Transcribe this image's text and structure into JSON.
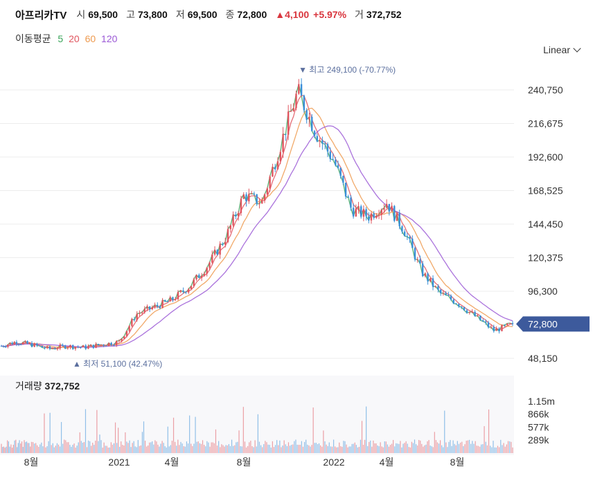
{
  "header": {
    "name": "아프리카TV",
    "open_label": "시",
    "open": "69,500",
    "high_label": "고",
    "high": "73,800",
    "low_label": "저",
    "low": "69,500",
    "close_label": "종",
    "close": "72,800",
    "change": "▲4,100",
    "change_pct": "+5.97%",
    "volume_label": "거",
    "volume": "372,752"
  },
  "ma_legend": {
    "label": "이동평균",
    "periods": [
      {
        "text": "5",
        "color": "#3aa55a"
      },
      {
        "text": "20",
        "color": "#e0555f"
      },
      {
        "text": "60",
        "color": "#ee9a4f"
      },
      {
        "text": "120",
        "color": "#9b59d6"
      }
    ]
  },
  "scale_select": "Linear",
  "colors": {
    "up": "#e0555f",
    "down": "#3b8fd9",
    "badge": "#3d5a9c",
    "grid": "#ececec",
    "annot": "#5b6f9e"
  },
  "chart_data": {
    "type": "candlestick",
    "yaxis": {
      "ticks": [
        240750,
        216675,
        192600,
        168525,
        144450,
        120375,
        96300,
        48150
      ],
      "tick_labels": [
        "240,750",
        "216,675",
        "192,600",
        "168,525",
        "144,450",
        "120,375",
        "96,300",
        "48,150"
      ],
      "range": [
        40000,
        266000
      ]
    },
    "xaxis": {
      "tick_labels": [
        "8월",
        "2021",
        "4월",
        "8월",
        "2022",
        "4월",
        "8월"
      ],
      "tick_dates": [
        "2020-08",
        "2021-01",
        "2021-04",
        "2021-08",
        "2022-01",
        "2022-04",
        "2022-08"
      ],
      "range": [
        "2020-06",
        "2022-11"
      ]
    },
    "price_path": [
      [
        "2020-06",
        57000
      ],
      [
        "2020-07",
        60000
      ],
      [
        "2020-08",
        58000
      ],
      [
        "2020-09",
        55000
      ],
      [
        "2020-10",
        57000
      ],
      [
        "2020-11",
        56000
      ],
      [
        "2020-12",
        58000
      ],
      [
        "2021-01",
        60000
      ],
      [
        "2021-02",
        80000
      ],
      [
        "2021-03",
        85000
      ],
      [
        "2021-04",
        90000
      ],
      [
        "2021-05",
        100000
      ],
      [
        "2021-06",
        115000
      ],
      [
        "2021-07",
        135000
      ],
      [
        "2021-08",
        165000
      ],
      [
        "2021-09",
        160000
      ],
      [
        "2021-10",
        200000
      ],
      [
        "2021-11",
        240000
      ],
      [
        "2021-12",
        210000
      ],
      [
        "2022-01",
        190000
      ],
      [
        "2022-02",
        155000
      ],
      [
        "2022-03",
        150000
      ],
      [
        "2022-04",
        160000
      ],
      [
        "2022-05",
        140000
      ],
      [
        "2022-06",
        110000
      ],
      [
        "2022-07",
        95000
      ],
      [
        "2022-08",
        88000
      ],
      [
        "2022-09",
        78000
      ],
      [
        "2022-10",
        68000
      ],
      [
        "2022-11",
        72800
      ]
    ],
    "ma_periods": [
      5,
      20,
      60,
      120
    ],
    "current_price": {
      "value": 72800,
      "label": "72,800"
    },
    "max_annotation": {
      "label": "최고",
      "value": "249,100",
      "pct": "(-70.77%)",
      "price": 249100
    },
    "min_annotation": {
      "label": "최저",
      "value": "51,100",
      "pct": "(42.47%)",
      "price": 51100
    },
    "volume": {
      "label": "거래량",
      "value": "372,752",
      "ticks": [
        1150000,
        866000,
        577000,
        289000
      ],
      "tick_labels": [
        "1.15m",
        "866k",
        "577k",
        "289k"
      ],
      "max": 1300000
    }
  }
}
